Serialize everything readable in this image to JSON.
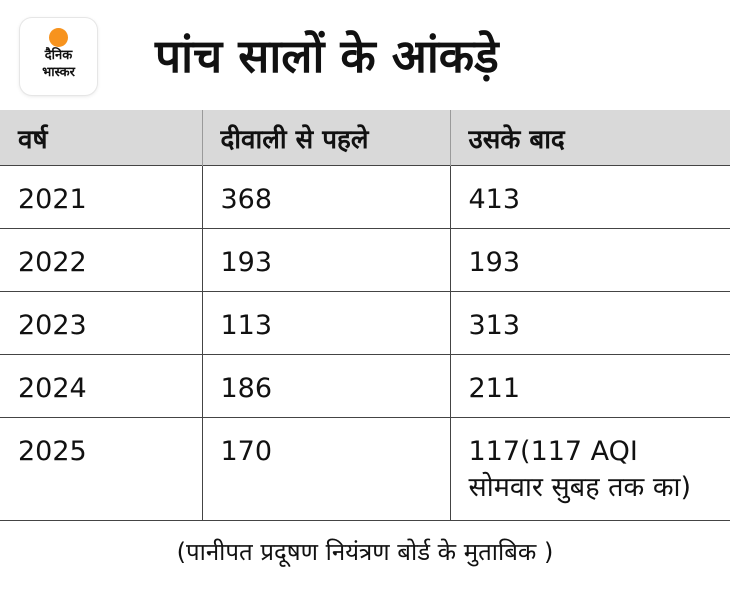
{
  "logo": {
    "line1": "दैनिक",
    "line2": "भास्कर",
    "accent_color": "#f7931e"
  },
  "title": "पांच सालों के आंकड़े",
  "table": {
    "headers": [
      "वर्ष",
      "दीवाली से पहले",
      "उसके बाद"
    ],
    "rows": [
      {
        "year": "2021",
        "before": "368",
        "after": "413"
      },
      {
        "year": "2022",
        "before": "193",
        "after": "193"
      },
      {
        "year": "2023",
        "before": "113",
        "after": "313"
      },
      {
        "year": "2024",
        "before": "186",
        "after": "211"
      },
      {
        "year": "2025",
        "before": "170",
        "after": "117(117 AQI सोमवार सुबह तक का)"
      }
    ]
  },
  "footnote": "(पानीपत प्रदूषण नियंत्रण बोर्ड के मुताबिक )"
}
